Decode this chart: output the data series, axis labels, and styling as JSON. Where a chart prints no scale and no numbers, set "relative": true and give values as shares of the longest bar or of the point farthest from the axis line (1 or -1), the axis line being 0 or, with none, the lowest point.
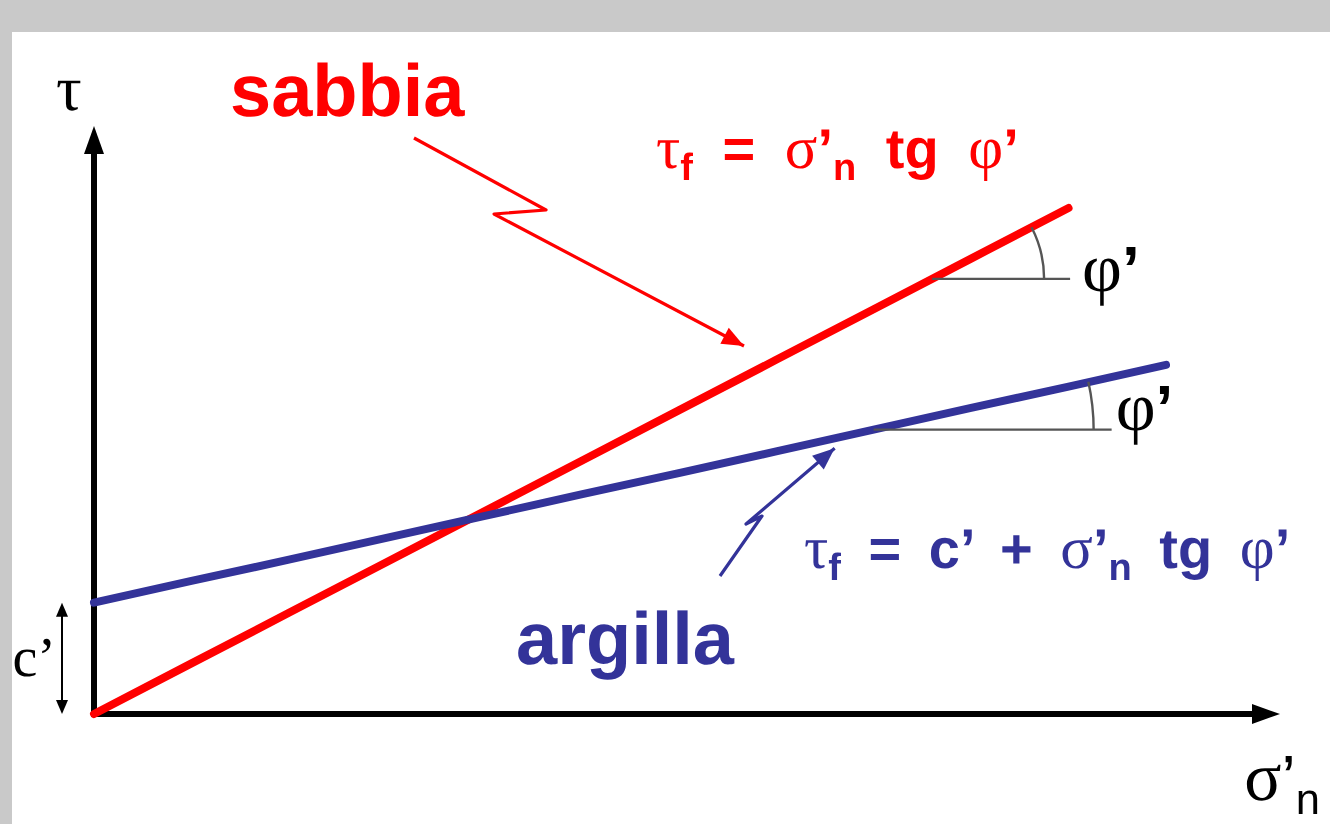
{
  "chart_data": {
    "type": "line",
    "relative": true,
    "xlabel": "σ’$_{n}$",
    "ylabel": "τ",
    "categories": [
      null,
      null,
      null,
      null,
      null,
      null,
      null,
      null,
      null,
      null,
      null,
      null
    ],
    "series": [
      {
        "name": "sabbia",
        "color": "#ff0000",
        "values": [
          0,
          0.1,
          0.2,
          0.3,
          0.4,
          0.5,
          0.6,
          0.7,
          0.8,
          0.9,
          1,
          null
        ]
      },
      {
        "name": "argilla",
        "color": "#333399",
        "values": [
          0.22,
          0.263,
          0.305,
          0.348,
          0.391,
          0.434,
          0.476,
          0.519,
          0.562,
          0.605,
          0.647,
          0.69
        ]
      }
    ],
    "annotations": [
      "τ$_{f}$ = σ’$_{n}$ tg φ’",
      "φ’",
      "φ’",
      "τ$_{f}$ = c’ + σ’$_{n}$ tg φ’",
      "c’"
    ]
  }
}
